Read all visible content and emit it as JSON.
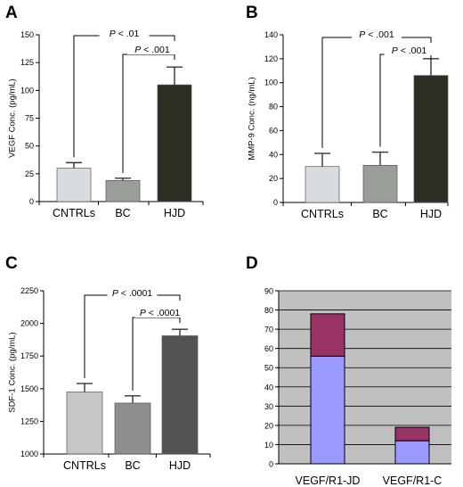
{
  "chart_data": [
    {
      "panel": "A",
      "type": "bar",
      "ylabel": "VEGF Conc. (pg/mL)",
      "ylim": [
        0,
        150
      ],
      "yticks": [
        0,
        25,
        50,
        75,
        100,
        125,
        150
      ],
      "categories": [
        "CNTRLs",
        "BC",
        "HJD"
      ],
      "values": [
        30,
        19,
        105
      ],
      "errors": [
        5,
        2,
        16
      ],
      "colors": [
        "#d8dbe0",
        "#999e99",
        "#2e2e22"
      ],
      "significance": [
        {
          "label": "P < .01",
          "from": 0,
          "to": 2
        },
        {
          "label": "P < .001",
          "from": 1,
          "to": 2
        }
      ]
    },
    {
      "panel": "B",
      "type": "bar",
      "ylabel": "MMP-9 Conc. (ng/mL)",
      "ylim": [
        0,
        140
      ],
      "yticks": [
        0,
        20,
        40,
        60,
        80,
        100,
        120,
        140
      ],
      "categories": [
        "CNTRLs",
        "BC",
        "HJD"
      ],
      "values": [
        30,
        31,
        106
      ],
      "errors": [
        11,
        11,
        14
      ],
      "colors": [
        "#d8dbe0",
        "#999e99",
        "#2e2e22"
      ],
      "significance": [
        {
          "label": "P < .001",
          "from": 0,
          "to": 2
        },
        {
          "label": "P < .001",
          "from": 1,
          "to": 2
        }
      ]
    },
    {
      "panel": "C",
      "type": "bar",
      "ylabel": "SDF-1 Conc. (pg/mL)",
      "ylim": [
        1000,
        2250
      ],
      "yticks": [
        1000,
        1250,
        1500,
        1750,
        2000,
        2250
      ],
      "categories": [
        "CNTRLs",
        "BC",
        "HJD"
      ],
      "values": [
        1475,
        1390,
        1905
      ],
      "errors": [
        65,
        55,
        50
      ],
      "colors": [
        "#c6c6c6",
        "#8e8e8e",
        "#525252"
      ],
      "significance": [
        {
          "label": "P < .0001",
          "from": 0,
          "to": 2
        },
        {
          "label": "P < .0001",
          "from": 1,
          "to": 2
        }
      ]
    },
    {
      "panel": "D",
      "type": "bar",
      "stacked": true,
      "ylim": [
        0,
        90
      ],
      "yticks": [
        0,
        10,
        20,
        30,
        40,
        50,
        60,
        70,
        80,
        90
      ],
      "categories": [
        "VEGF/R1-JD",
        "VEGF/R1-C"
      ],
      "series": [
        {
          "values": [
            56,
            12
          ],
          "color": "#9999ff"
        },
        {
          "values": [
            22,
            7
          ],
          "color": "#993366"
        }
      ],
      "plot_background": "#c0c0c0"
    }
  ]
}
